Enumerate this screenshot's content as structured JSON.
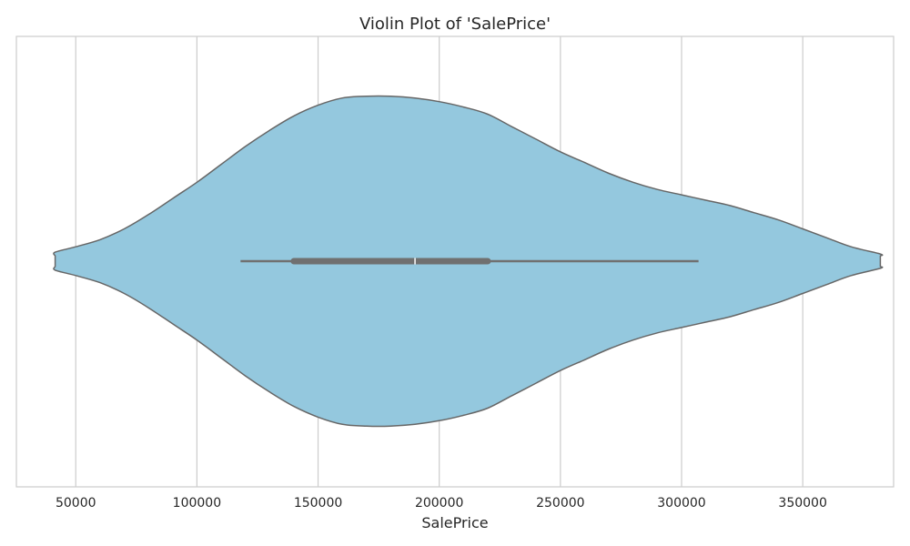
{
  "chart_data": {
    "type": "violin",
    "title": "Violin Plot of 'SalePrice'",
    "xlabel": "SalePrice",
    "ylabel": "",
    "orientation": "horizontal",
    "grid": true,
    "xticks": [
      50000,
      100000,
      150000,
      200000,
      250000,
      300000,
      350000
    ],
    "xlim": [
      25500,
      387500
    ],
    "colors": {
      "fill": "#94c8de",
      "edge": "#666666",
      "box": "#707070",
      "median": "#ffffff",
      "grid": "#cccccc",
      "frame": "#cccccc"
    },
    "series": [
      {
        "box": {
          "whisker_low": 118000,
          "q1": 140000,
          "median": 190000,
          "q3": 220000,
          "whisker_high": 307000
        },
        "density": {
          "x": [
            41500,
            41500,
            50000,
            60000,
            70000,
            80000,
            90000,
            100000,
            110000,
            120000,
            130000,
            140000,
            150000,
            160000,
            170000,
            180000,
            190000,
            200000,
            210000,
            220000,
            230000,
            240000,
            250000,
            260000,
            270000,
            280000,
            290000,
            300000,
            310000,
            320000,
            330000,
            340000,
            350000,
            360000,
            370000,
            382000,
            382000
          ],
          "width": [
            0.03,
            0.05,
            0.08,
            0.12,
            0.18,
            0.26,
            0.35,
            0.44,
            0.54,
            0.64,
            0.73,
            0.81,
            0.87,
            0.91,
            0.92,
            0.92,
            0.91,
            0.89,
            0.86,
            0.82,
            0.75,
            0.68,
            0.61,
            0.55,
            0.49,
            0.44,
            0.4,
            0.37,
            0.34,
            0.31,
            0.27,
            0.23,
            0.18,
            0.13,
            0.08,
            0.04,
            0.03
          ]
        }
      }
    ]
  }
}
